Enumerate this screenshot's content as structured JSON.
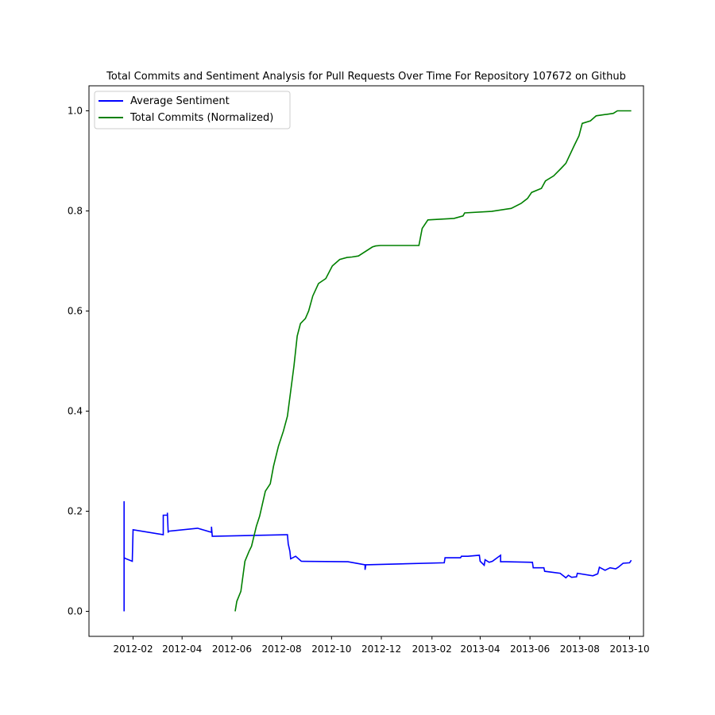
{
  "chart_data": {
    "type": "line",
    "title": "Total Commits and Sentiment Analysis for Pull Requests Over Time For Repository 107672 on Github",
    "xlabel": "",
    "ylabel": "",
    "xlim": [
      "2011-12-09",
      "2013-10-18"
    ],
    "ylim": [
      -0.05,
      1.05
    ],
    "grid": false,
    "legend": {
      "position": "top-left",
      "entries": [
        "Average Sentiment",
        "Total Commits (Normalized)"
      ]
    },
    "x_ticks": [
      "2012-02",
      "2012-04",
      "2012-06",
      "2012-08",
      "2012-10",
      "2012-12",
      "2013-02",
      "2013-04",
      "2013-06",
      "2013-08",
      "2013-10"
    ],
    "y_ticks": [
      "0.0",
      "0.2",
      "0.4",
      "0.6",
      "0.8",
      "1.0"
    ],
    "series": [
      {
        "name": "Average Sentiment",
        "color": "#0000ff",
        "x": [
          "2012-01-21",
          "2012-01-21",
          "2012-01-21",
          "2012-01-21",
          "2012-01-22",
          "2012-01-22",
          "2012-01-31",
          "2012-02-01",
          "2012-03-09",
          "2012-03-09",
          "2012-03-14",
          "2012-03-14",
          "2012-03-15",
          "2012-03-15",
          "2012-04-20",
          "2012-05-07",
          "2012-05-07",
          "2012-05-08",
          "2012-08-07",
          "2012-08-08",
          "2012-08-09",
          "2012-08-11",
          "2012-08-12",
          "2012-08-18",
          "2012-08-25",
          "2012-10-21",
          "2012-11-11",
          "2012-11-11",
          "2012-11-12",
          "2013-02-16",
          "2013-02-17",
          "2013-03-08",
          "2013-03-09",
          "2013-03-17",
          "2013-03-31",
          "2013-04-01",
          "2013-04-06",
          "2013-04-07",
          "2013-04-12",
          "2013-04-16",
          "2013-04-26",
          "2013-04-26",
          "2013-05-02",
          "2013-06-04",
          "2013-06-05",
          "2013-06-18",
          "2013-06-19",
          "2013-07-08",
          "2013-07-15",
          "2013-07-18",
          "2013-07-22",
          "2013-07-28",
          "2013-07-29",
          "2013-08-17",
          "2013-08-23",
          "2013-08-25",
          "2013-09-01",
          "2013-09-07",
          "2013-09-14",
          "2013-09-17",
          "2013-09-23",
          "2013-10-01",
          "2013-10-03"
        ],
        "values": [
          0.22,
          0.0,
          0.065,
          0.108,
          0.106,
          0.106,
          0.1,
          0.163,
          0.153,
          0.192,
          0.192,
          0.197,
          0.157,
          0.16,
          0.166,
          0.158,
          0.169,
          0.15,
          0.153,
          0.153,
          0.135,
          0.12,
          0.105,
          0.11,
          0.1,
          0.099,
          0.093,
          0.083,
          0.093,
          0.097,
          0.107,
          0.107,
          0.11,
          0.11,
          0.112,
          0.1,
          0.092,
          0.103,
          0.098,
          0.1,
          0.112,
          0.099,
          0.099,
          0.098,
          0.087,
          0.087,
          0.08,
          0.076,
          0.067,
          0.072,
          0.068,
          0.069,
          0.076,
          0.071,
          0.075,
          0.088,
          0.082,
          0.087,
          0.085,
          0.088,
          0.096,
          0.097,
          0.102
        ]
      },
      {
        "name": "Total Commits (Normalized)",
        "color": "#008000",
        "x": [
          "2012-06-05",
          "2012-06-07",
          "2012-06-12",
          "2012-06-17",
          "2012-06-22",
          "2012-06-25",
          "2012-07-01",
          "2012-07-05",
          "2012-07-12",
          "2012-07-18",
          "2012-07-22",
          "2012-07-28",
          "2012-08-03",
          "2012-08-08",
          "2012-08-12",
          "2012-08-16",
          "2012-08-20",
          "2012-08-24",
          "2012-08-30",
          "2012-09-03",
          "2012-09-08",
          "2012-09-15",
          "2012-09-24",
          "2012-10-02",
          "2012-10-11",
          "2012-10-20",
          "2012-10-26",
          "2012-11-03",
          "2012-11-20",
          "2012-11-24",
          "2012-11-30",
          "2013-01-16",
          "2013-01-20",
          "2013-01-27",
          "2013-02-28",
          "2013-03-11",
          "2013-03-13",
          "2013-04-15",
          "2013-05-09",
          "2013-05-21",
          "2013-05-29",
          "2013-06-03",
          "2013-06-15",
          "2013-06-20",
          "2013-06-30",
          "2013-07-09",
          "2013-07-15",
          "2013-07-25",
          "2013-07-31",
          "2013-08-04",
          "2013-08-14",
          "2013-08-21",
          "2013-09-11",
          "2013-09-16",
          "2013-10-03"
        ],
        "values": [
          0.0,
          0.02,
          0.04,
          0.1,
          0.12,
          0.13,
          0.17,
          0.19,
          0.24,
          0.255,
          0.29,
          0.33,
          0.36,
          0.39,
          0.44,
          0.49,
          0.55,
          0.575,
          0.585,
          0.6,
          0.63,
          0.655,
          0.665,
          0.69,
          0.703,
          0.707,
          0.708,
          0.71,
          0.728,
          0.73,
          0.731,
          0.731,
          0.765,
          0.782,
          0.785,
          0.79,
          0.796,
          0.799,
          0.805,
          0.815,
          0.825,
          0.837,
          0.845,
          0.86,
          0.87,
          0.885,
          0.895,
          0.93,
          0.95,
          0.975,
          0.98,
          0.99,
          0.995,
          1.0,
          1.0
        ]
      }
    ]
  }
}
